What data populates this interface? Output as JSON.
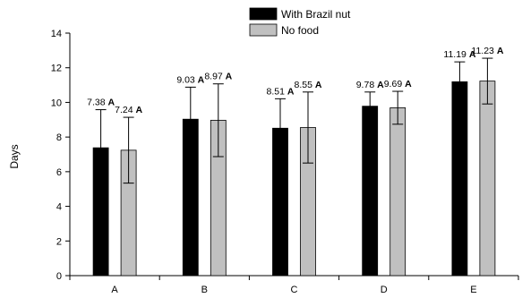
{
  "chart_data": {
    "type": "bar",
    "categories": [
      "A",
      "B",
      "C",
      "D",
      "E"
    ],
    "ylabel": "Days",
    "xlabel": "",
    "ylim": [
      0,
      14
    ],
    "yticks": [
      0,
      2,
      4,
      6,
      8,
      10,
      12,
      14
    ],
    "legend_position": "top-center",
    "series": [
      {
        "name": "With Brazil nut",
        "color": "#000000",
        "values": [
          7.38,
          9.03,
          8.51,
          9.78,
          11.19
        ],
        "error": [
          2.2,
          1.85,
          1.7,
          0.82,
          1.15
        ],
        "value_labels": [
          "7.38",
          "9.03",
          "8.51",
          "9.78",
          "11.19"
        ],
        "significance": [
          "A",
          "A",
          "A",
          "A",
          "A"
        ]
      },
      {
        "name": "No food",
        "color": "#c0c0c0",
        "values": [
          7.24,
          8.97,
          8.55,
          9.69,
          11.23
        ],
        "error": [
          1.9,
          2.1,
          2.05,
          0.95,
          1.32
        ],
        "value_labels": [
          "7.24",
          "8.97",
          "8.55",
          "9.69",
          "11.23"
        ],
        "significance": [
          "A",
          "A",
          "A",
          "A",
          "A"
        ]
      }
    ]
  }
}
